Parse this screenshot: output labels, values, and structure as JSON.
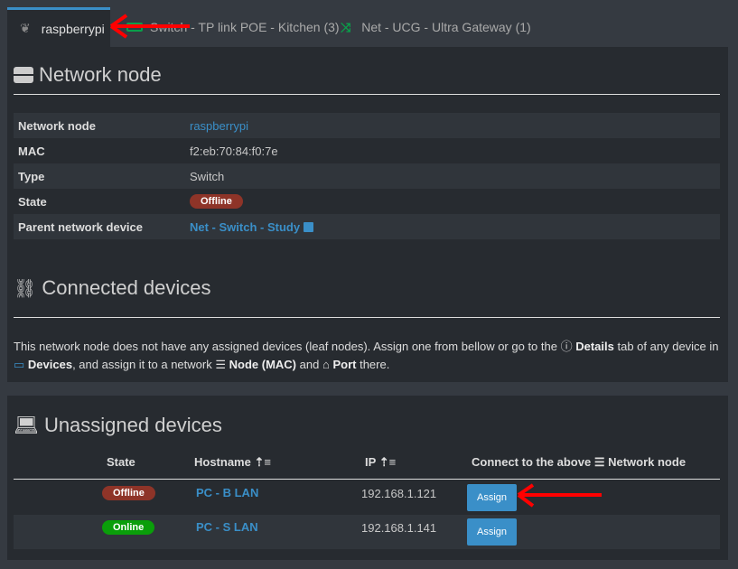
{
  "tabs": [
    {
      "label": "raspberrypi",
      "icon": "raspberry-icon",
      "active": true
    },
    {
      "label": "Switch - TP link POE - Kitchen (3)",
      "icon": "switch-icon"
    },
    {
      "label": "Net - UCG - Ultra Gateway (1)",
      "icon": "shuffle-icon"
    }
  ],
  "node": {
    "title": "Network node",
    "rows": [
      {
        "label": "Network node",
        "value": "raspberrypi"
      },
      {
        "label": "MAC",
        "value": "f2:eb:70:84:f0:7e"
      },
      {
        "label": "Type",
        "value": "Switch"
      },
      {
        "label": "State",
        "value": "Offline"
      },
      {
        "label": "Parent network device",
        "value": "Net - Switch - Study"
      }
    ]
  },
  "connected": {
    "title": "Connected devices",
    "info1": "This network node does not have any assigned devices (leaf nodes). Assign one from bellow or go to the",
    "details": "Details",
    "info2": "tab of any device in",
    "devices": "Devices",
    "info3": ", and assign it to a network",
    "node_mac": "Node (MAC)",
    "and": "and",
    "port": "Port",
    "there": "there."
  },
  "unassigned": {
    "title": "Unassigned devices",
    "headers": {
      "state": "State",
      "hostname": "Hostname",
      "ip": "IP",
      "connect": "Connect to the above",
      "connect2": "Network node"
    },
    "rows": [
      {
        "state": "Offline",
        "hostname": "PC - B LAN",
        "ip": "192.168.1.121",
        "action": "Assign"
      },
      {
        "state": "Online",
        "hostname": "PC - S LAN",
        "ip": "192.168.1.141",
        "action": "Assign"
      }
    ]
  },
  "colors": {
    "accent": "#3a8fc8",
    "offline": "#8e3428",
    "online": "#0a9e0a",
    "annotation": "#ff0000"
  }
}
